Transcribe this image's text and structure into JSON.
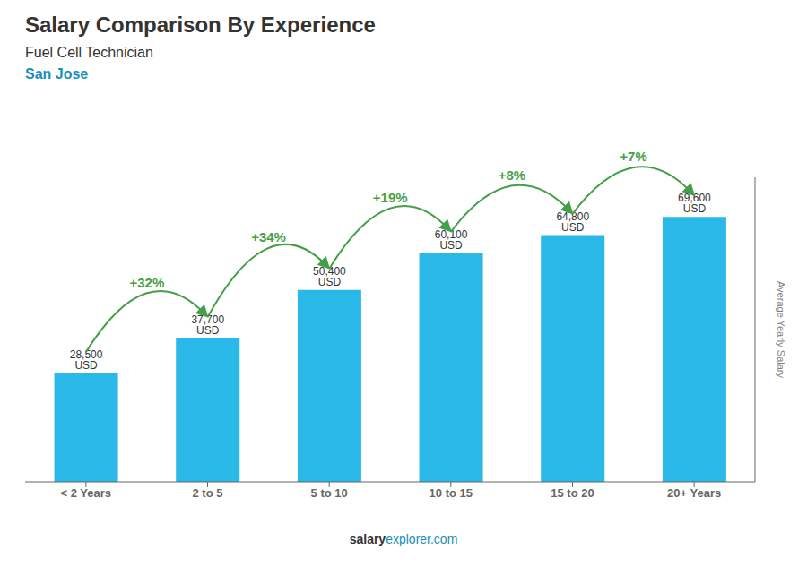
{
  "chart_data": {
    "type": "bar",
    "title": "Salary Comparison By Experience",
    "subtitle": "Fuel Cell Technician",
    "categories": [
      "< 2 Years",
      "2 to 5",
      "5 to 10",
      "10 to 15",
      "15 to 20",
      "20+ Years"
    ],
    "values": [
      28500,
      37700,
      50400,
      60100,
      64800,
      69600
    ],
    "value_labels": [
      "28,500 USD",
      "37,700 USD",
      "50,400 USD",
      "60,100 USD",
      "64,800 USD",
      "69,600 USD"
    ],
    "data_labels": true,
    "color": "#29b8e8",
    "ylabel": "Average Yearly Salary",
    "ylim": [
      0,
      80000
    ],
    "tick_labels": "x",
    "grid": false,
    "annotations": {
      "city": "San Jose",
      "changes": [
        "+32%",
        "+34%",
        "+19%",
        "+8%",
        "+7%"
      ],
      "footer": [
        "salary",
        "explorer.com"
      ]
    }
  }
}
